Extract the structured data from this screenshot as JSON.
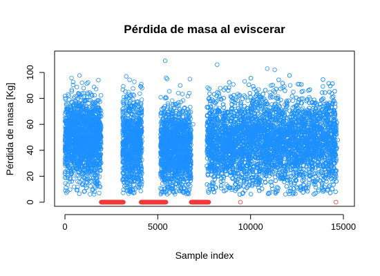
{
  "chart_data": {
    "type": "scatter",
    "title": "Pérdida de masa al eviscerar",
    "xlabel": "Sample index",
    "ylabel": "Pérdida de masa [Kg]",
    "xlim": [
      0,
      15000
    ],
    "ylim": [
      0,
      110
    ],
    "xticks": [
      "0",
      "5000",
      "10000",
      "15000"
    ],
    "yticks": [
      "0",
      "20",
      "40",
      "60",
      "80",
      "100"
    ],
    "grid": false,
    "colors": {
      "main": "#1E90FF",
      "zero": "#EE3B3B"
    },
    "series": [
      {
        "name": "",
        "color": "#1E90FF",
        "sample_points": [
          [
            5,
            22
          ],
          [
            80,
            55
          ],
          [
            300,
            62
          ],
          [
            700,
            80
          ],
          [
            1000,
            40
          ],
          [
            1500,
            70
          ],
          [
            3300,
            97
          ],
          [
            3500,
            20
          ],
          [
            3700,
            55
          ],
          [
            4100,
            45
          ],
          [
            4150,
            88
          ],
          [
            5400,
            109
          ],
          [
            5500,
            95
          ],
          [
            6000,
            70
          ],
          [
            6900,
            60
          ],
          [
            7800,
            28
          ],
          [
            8000,
            78
          ],
          [
            8200,
            106
          ],
          [
            8500,
            40
          ],
          [
            9000,
            55
          ],
          [
            9500,
            70
          ],
          [
            10000,
            45
          ],
          [
            10300,
            20
          ],
          [
            10900,
            103
          ],
          [
            11100,
            90
          ],
          [
            11300,
            102
          ],
          [
            11800,
            60
          ],
          [
            12300,
            85
          ],
          [
            12700,
            40
          ],
          [
            13500,
            72
          ],
          [
            14000,
            30
          ],
          [
            14500,
            78
          ],
          [
            14700,
            48
          ]
        ],
        "clusters": [
          {
            "x": [
              0,
              1950
            ],
            "mean": 48,
            "sd": 16
          },
          {
            "x": [
              3100,
              4150
            ],
            "mean": 44,
            "sd": 18
          },
          {
            "x": [
              5150,
              6800
            ],
            "mean": 42,
            "sd": 16
          },
          {
            "x": [
              7650,
              14650
            ],
            "mean": 47,
            "sd": 17
          }
        ]
      },
      {
        "name": "",
        "color": "#EE3B3B",
        "zero_runs": [
          [
            1950,
            3150
          ],
          [
            4100,
            5450
          ],
          [
            6800,
            7750
          ]
        ],
        "isolated_points": [
          [
            9450,
            0
          ],
          [
            14600,
            0
          ]
        ]
      }
    ]
  }
}
